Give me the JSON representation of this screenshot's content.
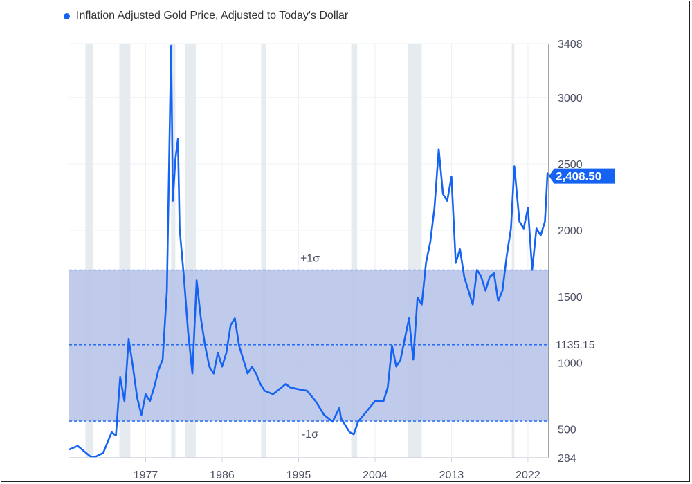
{
  "chart_data": {
    "type": "line",
    "title": "",
    "xlabel": "",
    "ylabel": "",
    "legend": {
      "placement": "top-left",
      "entries": [
        "Inflation Adjusted Gold Price, Adjusted to Today's Dollar"
      ]
    },
    "series": [
      {
        "name": "Inflation Adjusted Gold Price, Adjusted to Today's Dollar",
        "color": "#1463f3",
        "x": [
          1968.0,
          1969.0,
          1970.0,
          1970.5,
          1971.0,
          1972.0,
          1973.0,
          1973.5,
          1974.0,
          1974.5,
          1975.0,
          1975.5,
          1976.0,
          1976.5,
          1977.0,
          1977.5,
          1978.0,
          1978.5,
          1979.0,
          1979.5,
          1980.0,
          1980.2,
          1980.5,
          1980.8,
          1981.0,
          1981.5,
          1982.0,
          1982.5,
          1983.0,
          1983.5,
          1984.0,
          1984.5,
          1985.0,
          1985.5,
          1986.0,
          1986.5,
          1987.0,
          1987.5,
          1988.0,
          1988.5,
          1989.0,
          1989.5,
          1990.0,
          1990.5,
          1991.0,
          1992.0,
          1993.0,
          1993.5,
          1994.0,
          1995.0,
          1996.0,
          1997.0,
          1998.0,
          1999.0,
          1999.8,
          2000.0,
          2001.0,
          2001.5,
          2002.0,
          2003.0,
          2004.0,
          2005.0,
          2005.5,
          2006.0,
          2006.5,
          2007.0,
          2008.0,
          2008.5,
          2009.0,
          2009.5,
          2010.0,
          2010.5,
          2011.0,
          2011.5,
          2012.0,
          2012.5,
          2013.0,
          2013.5,
          2014.0,
          2014.5,
          2015.0,
          2015.5,
          2016.0,
          2016.5,
          2017.0,
          2017.5,
          2018.0,
          2018.5,
          2019.0,
          2019.5,
          2020.0,
          2020.4,
          2020.7,
          2021.0,
          2021.5,
          2022.0,
          2022.5,
          2023.0,
          2023.5,
          2024.0,
          2024.3,
          2024.4
        ],
        "values": [
          346,
          373,
          320,
          294,
          289,
          320,
          477,
          451,
          893,
          711,
          1180,
          971,
          737,
          607,
          763,
          711,
          815,
          945,
          1024,
          1544,
          3393,
          2221,
          2534,
          2690,
          2013,
          1648,
          1232,
          919,
          1622,
          1336,
          1128,
          971,
          919,
          1076,
          971,
          1076,
          1284,
          1336,
          1128,
          1024,
          919,
          971,
          919,
          841,
          789,
          763,
          815,
          841,
          815,
          800,
          789,
          711,
          607,
          555,
          659,
          581,
          477,
          461,
          555,
          633,
          711,
          711,
          815,
          1128,
          971,
          1024,
          1336,
          1024,
          1493,
          1440,
          1753,
          1909,
          2169,
          2612,
          2273,
          2221,
          2404,
          1753,
          1857,
          1648,
          1544,
          1440,
          1701,
          1648,
          1544,
          1648,
          1675,
          1466,
          1544,
          1805,
          2013,
          2482,
          2273,
          2065,
          2013,
          2169,
          1701,
          2013,
          1961,
          2065,
          2430,
          2408.5
        ]
      }
    ],
    "last_value_label": "2,408.50",
    "reference_lines": [
      {
        "label": "+1σ",
        "value": 1700
      },
      {
        "label": "1135.15",
        "value": 1135.15
      },
      {
        "label": "-1σ",
        "value": 560
      }
    ],
    "band": {
      "from": 560,
      "to": 1700,
      "color": "#b9c4e8"
    },
    "recessions": [
      [
        1969.9,
        1970.8
      ],
      [
        1973.9,
        1975.2
      ],
      [
        1980.0,
        1980.5
      ],
      [
        1981.6,
        1982.9
      ],
      [
        1990.6,
        1991.2
      ],
      [
        2001.2,
        2001.9
      ],
      [
        2007.9,
        2009.5
      ],
      [
        2020.1,
        2020.4
      ]
    ],
    "x_ticks": [
      1977,
      1986,
      1995,
      2004,
      2013,
      2022
    ],
    "y_ticks": [
      284,
      500,
      1000,
      1500,
      2000,
      2500,
      3000,
      3408
    ],
    "xlim": [
      1968.0,
      2024.45
    ],
    "ylim": [
      284,
      3408
    ],
    "grid": true
  }
}
